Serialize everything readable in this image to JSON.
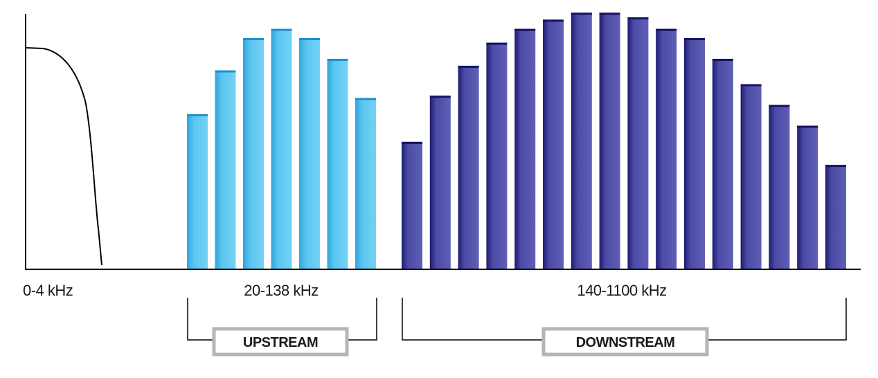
{
  "colors": {
    "axis": "#000000",
    "voice_curve": "#000000",
    "upstream_bar_light": "#6fd0f4",
    "upstream_bar_dark": "#2fa6dd",
    "downstream_bar_light": "#5a5ab0",
    "downstream_bar_dark": "#1f1f78",
    "label_box_border": "#b5b5b5"
  },
  "bands": {
    "voice": {
      "label": "0-4 kHz"
    },
    "upstream": {
      "label": "20-138 kHz",
      "box_label": "UPSTREAM",
      "levels": [
        0.67,
        0.86,
        1.0,
        1.04,
        1.0,
        0.91,
        0.74
      ]
    },
    "downstream": {
      "label": "140-1100 kHz",
      "box_label": "DOWNSTREAM",
      "levels": [
        0.55,
        0.75,
        0.88,
        0.98,
        1.04,
        1.08,
        1.11,
        1.11,
        1.09,
        1.04,
        1.0,
        0.91,
        0.8,
        0.71,
        0.62,
        0.45
      ]
    }
  }
}
